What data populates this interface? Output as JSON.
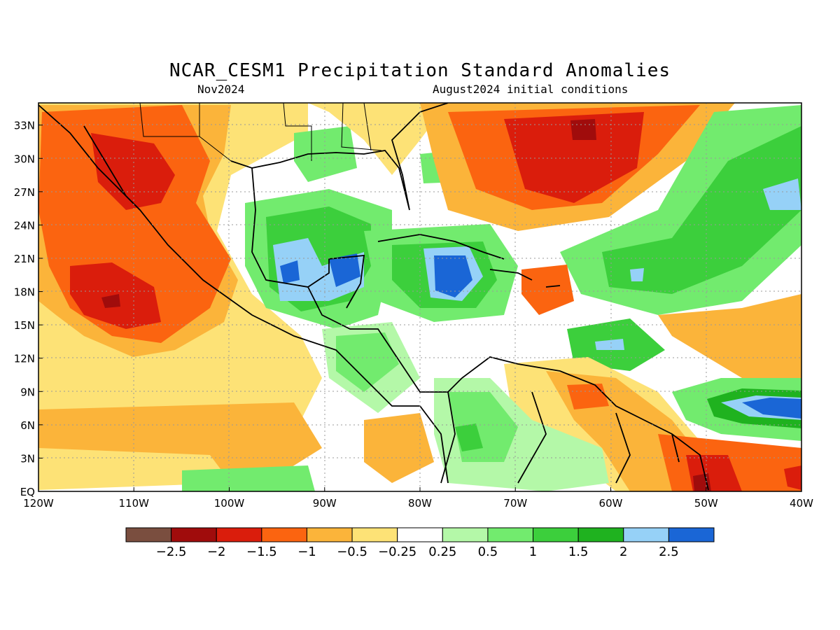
{
  "title": "NCAR_CESM1 Precipitation Standard Anomalies",
  "subtitle_left": "Nov2024",
  "subtitle_right": "August2024 initial conditions",
  "lat_ticks": [
    "33N",
    "30N",
    "27N",
    "24N",
    "21N",
    "18N",
    "15N",
    "12N",
    "9N",
    "6N",
    "3N",
    "EQ"
  ],
  "lon_ticks": [
    "120W",
    "110W",
    "100W",
    "90W",
    "80W",
    "70W",
    "60W",
    "50W",
    "40W"
  ],
  "colorbar": {
    "colors": [
      "#7a4e3f",
      "#a00c0c",
      "#da1d0c",
      "#fb6410",
      "#fbb43a",
      "#fde276",
      "#ffffff",
      "#b4f8a8",
      "#72eb6e",
      "#3ccf3c",
      "#1fb21f",
      "#96d1f7",
      "#1a66d6"
    ],
    "labels": [
      "-2.5",
      "-2",
      "-1.5",
      "-1",
      "-0.5",
      "-0.25",
      "0.25",
      "0.5",
      "1",
      "1.5",
      "2",
      "2.5"
    ]
  },
  "map_extent": {
    "lon": [
      -120,
      -40
    ],
    "lat": [
      0,
      35
    ]
  },
  "anomaly_regions": [
    {
      "name": "baja-mexico-pacific-dry",
      "value": -1.5
    },
    {
      "name": "pacific-core-dry",
      "value": -2.5
    },
    {
      "name": "atlantic-east-of-us-dry",
      "value": -2
    },
    {
      "name": "gulf-yucatan-wet",
      "value": 2.5
    },
    {
      "name": "jamaica-cuba-wet",
      "value": 2.5
    },
    {
      "name": "central-atlantic-wet",
      "value": 1.5
    },
    {
      "name": "tropical-atlantic-9n-wet",
      "value": 2.5
    },
    {
      "name": "guianas-dry",
      "value": -1
    },
    {
      "name": "amazon-mouth-dry",
      "value": -2
    },
    {
      "name": "colombia-wet",
      "value": 1
    }
  ]
}
